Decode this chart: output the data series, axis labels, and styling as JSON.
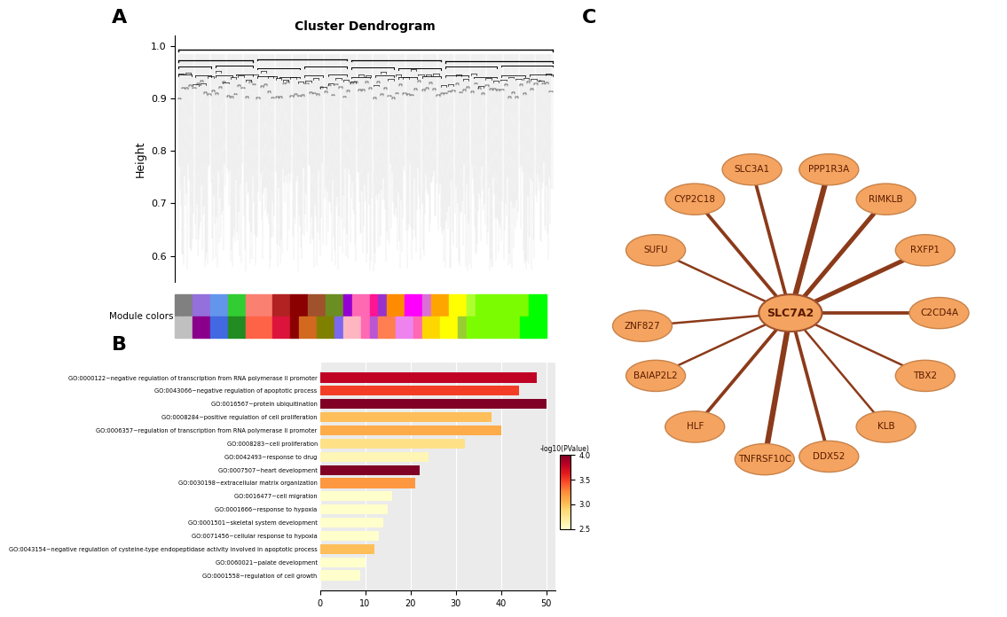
{
  "title_A": "Cluster Dendrogram",
  "ylabel_A": "Height",
  "ylim_A": [
    0.55,
    1.02
  ],
  "yticks_A": [
    0.6,
    0.7,
    0.8,
    0.9,
    1.0
  ],
  "go_terms": [
    "GO:0000122~negative regulation of transcription from RNA polymerase II promoter",
    "GO:0043066~negative regulation of apoptotic process",
    "GO:0016567~protein ubiquitination",
    "GO:0008284~positive regulation of cell proliferation",
    "GO:0006357~regulation of transcription from RNA polymerase II promoter",
    "GO:0008283~cell proliferation",
    "GO:0042493~response to drug",
    "GO:0007507~heart development",
    "GO:0030198~extracellular matrix organization",
    "GO:0016477~cell migration",
    "GO:0001666~response to hypoxia",
    "GO:0001501~skeletal system development",
    "GO:0071456~cellular response to hypoxia",
    "GO:0043154~negative regulation of cysteine-type endopeptidase activity involved in apoptotic process",
    "GO:0060021~palate development",
    "GO:0001558~regulation of cell growth"
  ],
  "go_values": [
    48,
    44,
    50,
    38,
    40,
    32,
    24,
    22,
    21,
    16,
    15,
    14,
    13,
    12,
    10,
    9
  ],
  "go_neg_log_pval": [
    3.8,
    3.5,
    4.2,
    3.0,
    3.1,
    2.8,
    2.6,
    4.3,
    3.2,
    2.5,
    2.5,
    2.5,
    2.5,
    3.0,
    2.5,
    2.5
  ],
  "network_center": "SLC7A2",
  "network_nodes": [
    "PPP1R3A",
    "RIMKLB",
    "RXFP1",
    "C2CD4A",
    "TBX2",
    "KLB",
    "DDX52",
    "TNFRSF10C",
    "HLF",
    "BAIAP2L2",
    "ZNF827",
    "SUFU",
    "CYP2C18",
    "SLC3A1"
  ],
  "network_angles_deg": [
    75,
    50,
    25,
    0,
    -25,
    -50,
    -75,
    -100,
    -130,
    -155,
    -175,
    155,
    130,
    105
  ],
  "network_edge_weights": [
    5,
    4,
    4,
    3,
    2,
    2,
    3,
    5,
    3,
    2,
    2,
    2,
    3,
    3
  ],
  "node_color": "#F4A460",
  "edge_color": "#8B3A1A",
  "label_A": "A",
  "label_B": "B",
  "label_C": "C",
  "colorbar_min": 2.5,
  "colorbar_max": 4.0,
  "colorbar_ticks": [
    2.5,
    3.0,
    3.5,
    4.0
  ]
}
